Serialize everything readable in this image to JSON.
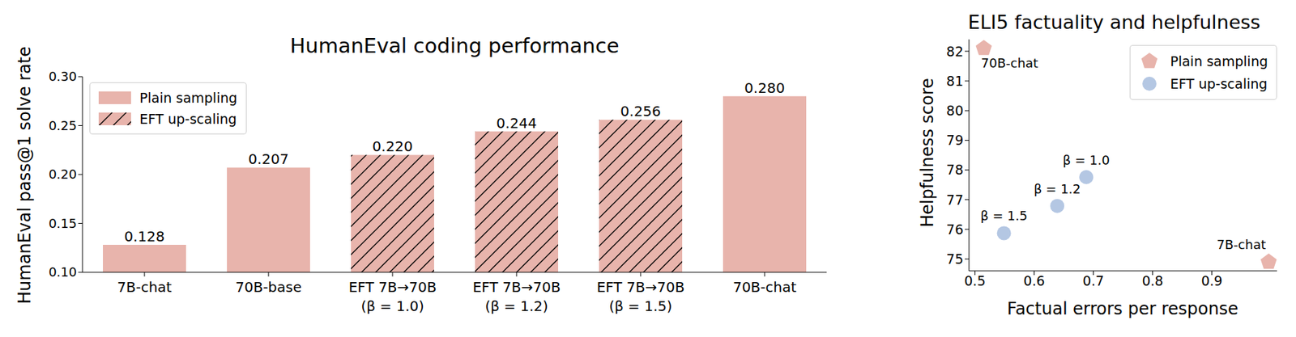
{
  "chart_data": [
    {
      "type": "bar",
      "title": "HumanEval coding performance",
      "y_label": "HumanEval pass@1 solve rate",
      "categories": [
        "7B-chat",
        "70B-base",
        "EFT 7B→70B\n(β = 1.0)",
        "EFT 7B→70B\n(β = 1.2)",
        "EFT 7B→70B\n(β = 1.5)",
        "70B-chat"
      ],
      "series": [
        {
          "name": "Plain sampling",
          "color": "#e8b4ac",
          "values": [
            0.128,
            0.207,
            null,
            null,
            null,
            0.28
          ],
          "value_labels": [
            "0.128",
            "0.207",
            null,
            null,
            null,
            "0.280"
          ]
        },
        {
          "name": "EFT up-scaling",
          "color": "#e8b4ac",
          "values": [
            null,
            null,
            0.22,
            0.244,
            0.256,
            null
          ],
          "value_labels": [
            null,
            null,
            "0.220",
            "0.244",
            "0.256",
            null
          ]
        }
      ],
      "ylim": [
        0.1,
        0.3
      ],
      "yticks": [
        {
          "value": 0.1,
          "label": "0.10"
        },
        {
          "value": 0.15,
          "label": "0.15"
        },
        {
          "value": 0.2,
          "label": "0.20"
        },
        {
          "value": 0.25,
          "label": "0.25"
        },
        {
          "value": 0.3,
          "label": "0.30"
        }
      ],
      "data_labels": true,
      "legend": "upper left"
    },
    {
      "type": "scatter",
      "title": "ELI5 factuality and helpfulness",
      "x_label": "Factual errors per response",
      "y_label": "Helpfulness score",
      "series": [
        {
          "name": "Plain sampling",
          "color": "#e8b4ac",
          "marker": "pentagon",
          "x": [
            0.515,
            0.996
          ],
          "values": [
            82.1,
            74.9
          ],
          "labels": [
            "70B-chat",
            "7B-chat"
          ]
        },
        {
          "name": "EFT up-scaling",
          "color": "#b4c7e3",
          "marker": "circle",
          "x": [
            0.688,
            0.639,
            0.549
          ],
          "values": [
            77.76,
            76.79,
            75.87
          ],
          "labels": [
            "β = 1.0",
            "β = 1.2",
            "β = 1.5"
          ]
        }
      ],
      "xlim": [
        0.49,
        1.01
      ],
      "xticks": [
        0.5,
        0.6,
        0.7,
        0.8,
        0.9
      ],
      "ylim": [
        74.6,
        82.4
      ],
      "yticks": [
        75,
        76,
        77,
        78,
        79,
        80,
        81,
        82
      ],
      "legend": "upper right"
    }
  ]
}
